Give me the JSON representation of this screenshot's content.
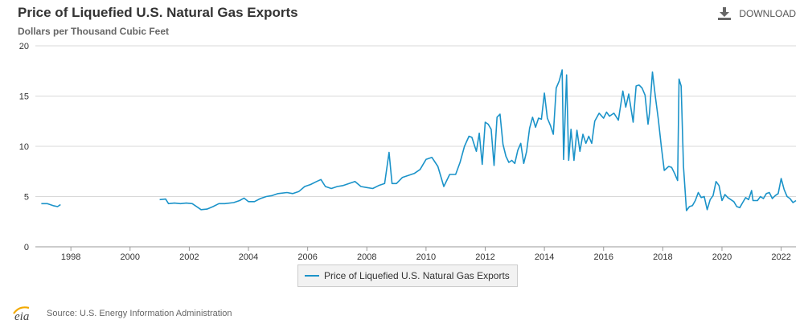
{
  "header": {
    "title": "Price of Liquefied U.S. Natural Gas Exports",
    "subtitle": "Dollars per Thousand Cubic Feet",
    "download_label": "DOWNLOAD"
  },
  "footer": {
    "logo_text": "eia",
    "source": "Source: U.S. Energy Information Administration"
  },
  "colors": {
    "series": "#1b93c9",
    "grid": "#d9d9d9",
    "axis_text": "#333333"
  },
  "chart_data": {
    "type": "line",
    "title": "Price of Liquefied U.S. Natural Gas Exports",
    "ylabel": "Dollars per Thousand Cubic Feet",
    "xlabel": "",
    "xlim": [
      1996.8,
      2022.5
    ],
    "ylim": [
      0,
      20
    ],
    "x_ticks": [
      1998,
      2000,
      2002,
      2004,
      2006,
      2008,
      2010,
      2012,
      2014,
      2016,
      2018,
      2020,
      2022
    ],
    "y_ticks": [
      0,
      5,
      10,
      15,
      20
    ],
    "grid": "horizontal",
    "legend": "bottom-center",
    "series": [
      {
        "name": "Price of Liquefied U.S. Natural Gas Exports",
        "segments": [
          [
            [
              1997.0,
              4.3
            ],
            [
              1997.2,
              4.3
            ],
            [
              1997.4,
              4.1
            ],
            [
              1997.55,
              4.0
            ],
            [
              1997.65,
              4.2
            ]
          ],
          [
            [
              2001.0,
              4.7
            ],
            [
              2001.2,
              4.75
            ],
            [
              2001.3,
              4.3
            ],
            [
              2001.5,
              4.35
            ],
            [
              2001.7,
              4.3
            ],
            [
              2001.9,
              4.35
            ],
            [
              2002.1,
              4.3
            ],
            [
              2002.3,
              3.9
            ],
            [
              2002.4,
              3.7
            ],
            [
              2002.6,
              3.75
            ],
            [
              2002.8,
              4.0
            ],
            [
              2003.0,
              4.3
            ],
            [
              2003.2,
              4.3
            ],
            [
              2003.5,
              4.4
            ],
            [
              2003.7,
              4.6
            ],
            [
              2003.85,
              4.85
            ],
            [
              2004.0,
              4.5
            ],
            [
              2004.2,
              4.5
            ],
            [
              2004.4,
              4.8
            ],
            [
              2004.6,
              5.0
            ],
            [
              2004.8,
              5.1
            ],
            [
              2005.0,
              5.3
            ],
            [
              2005.3,
              5.4
            ],
            [
              2005.5,
              5.3
            ],
            [
              2005.7,
              5.5
            ],
            [
              2005.9,
              6.0
            ],
            [
              2006.1,
              6.2
            ],
            [
              2006.3,
              6.5
            ],
            [
              2006.45,
              6.7
            ],
            [
              2006.6,
              6.0
            ],
            [
              2006.8,
              5.8
            ],
            [
              2007.0,
              6.0
            ],
            [
              2007.2,
              6.1
            ],
            [
              2007.4,
              6.3
            ],
            [
              2007.6,
              6.5
            ],
            [
              2007.8,
              6.0
            ],
            [
              2008.0,
              5.9
            ],
            [
              2008.2,
              5.8
            ],
            [
              2008.4,
              6.1
            ],
            [
              2008.6,
              6.3
            ],
            [
              2008.75,
              9.4
            ],
            [
              2008.85,
              6.3
            ],
            [
              2009.0,
              6.3
            ],
            [
              2009.2,
              6.9
            ],
            [
              2009.4,
              7.1
            ],
            [
              2009.6,
              7.3
            ],
            [
              2009.8,
              7.7
            ],
            [
              2010.0,
              8.7
            ],
            [
              2010.2,
              8.9
            ],
            [
              2010.4,
              8.0
            ],
            [
              2010.6,
              6.0
            ],
            [
              2010.8,
              7.2
            ],
            [
              2011.0,
              7.2
            ],
            [
              2011.15,
              8.4
            ],
            [
              2011.3,
              10.0
            ],
            [
              2011.45,
              11.0
            ],
            [
              2011.55,
              10.9
            ],
            [
              2011.7,
              9.5
            ],
            [
              2011.8,
              11.3
            ],
            [
              2011.9,
              8.2
            ],
            [
              2012.0,
              12.4
            ],
            [
              2012.1,
              12.2
            ],
            [
              2012.2,
              11.7
            ],
            [
              2012.3,
              8.1
            ],
            [
              2012.4,
              12.9
            ],
            [
              2012.5,
              13.2
            ],
            [
              2012.6,
              10.2
            ],
            [
              2012.7,
              9.0
            ],
            [
              2012.8,
              8.4
            ],
            [
              2012.9,
              8.6
            ],
            [
              2013.0,
              8.3
            ],
            [
              2013.1,
              9.6
            ],
            [
              2013.2,
              10.3
            ],
            [
              2013.3,
              8.3
            ],
            [
              2013.4,
              9.5
            ],
            [
              2013.5,
              11.8
            ],
            [
              2013.6,
              12.9
            ],
            [
              2013.7,
              11.9
            ],
            [
              2013.8,
              12.8
            ],
            [
              2013.9,
              12.7
            ],
            [
              2014.0,
              15.3
            ],
            [
              2014.1,
              12.8
            ],
            [
              2014.2,
              12.1
            ],
            [
              2014.3,
              11.2
            ],
            [
              2014.4,
              15.8
            ],
            [
              2014.5,
              16.5
            ],
            [
              2014.6,
              17.6
            ],
            [
              2014.65,
              8.7
            ],
            [
              2014.75,
              17.1
            ],
            [
              2014.82,
              8.6
            ],
            [
              2014.9,
              11.7
            ],
            [
              2015.0,
              8.6
            ],
            [
              2015.1,
              11.6
            ],
            [
              2015.2,
              9.5
            ],
            [
              2015.3,
              11.2
            ],
            [
              2015.4,
              10.3
            ],
            [
              2015.5,
              11.0
            ],
            [
              2015.6,
              10.3
            ],
            [
              2015.7,
              12.5
            ],
            [
              2015.85,
              13.3
            ],
            [
              2016.0,
              12.8
            ],
            [
              2016.1,
              13.4
            ],
            [
              2016.2,
              13.0
            ],
            [
              2016.35,
              13.3
            ],
            [
              2016.5,
              12.6
            ],
            [
              2016.65,
              15.5
            ],
            [
              2016.75,
              13.9
            ],
            [
              2016.85,
              15.2
            ],
            [
              2017.0,
              12.4
            ],
            [
              2017.1,
              16.0
            ],
            [
              2017.2,
              16.1
            ],
            [
              2017.3,
              15.8
            ],
            [
              2017.4,
              15.1
            ],
            [
              2017.5,
              12.2
            ],
            [
              2017.55,
              13.3
            ],
            [
              2017.65,
              17.4
            ],
            [
              2017.75,
              14.9
            ],
            [
              2017.85,
              12.7
            ],
            [
              2017.95,
              10.0
            ],
            [
              2018.05,
              7.6
            ],
            [
              2018.2,
              8.0
            ],
            [
              2018.3,
              7.9
            ],
            [
              2018.4,
              7.3
            ],
            [
              2018.5,
              6.6
            ],
            [
              2018.55,
              16.7
            ],
            [
              2018.62,
              16.0
            ],
            [
              2018.7,
              8.0
            ],
            [
              2018.8,
              3.6
            ],
            [
              2018.9,
              4.0
            ],
            [
              2019.0,
              4.1
            ],
            [
              2019.1,
              4.6
            ],
            [
              2019.2,
              5.4
            ],
            [
              2019.3,
              4.9
            ],
            [
              2019.4,
              5.0
            ],
            [
              2019.5,
              3.7
            ],
            [
              2019.6,
              4.7
            ],
            [
              2019.7,
              5.1
            ],
            [
              2019.8,
              6.5
            ],
            [
              2019.9,
              6.1
            ],
            [
              2020.0,
              4.6
            ],
            [
              2020.1,
              5.2
            ],
            [
              2020.2,
              4.9
            ],
            [
              2020.3,
              4.7
            ],
            [
              2020.4,
              4.5
            ],
            [
              2020.5,
              4.0
            ],
            [
              2020.6,
              3.9
            ],
            [
              2020.7,
              4.4
            ],
            [
              2020.8,
              4.9
            ],
            [
              2020.9,
              4.7
            ],
            [
              2021.0,
              5.6
            ],
            [
              2021.05,
              4.6
            ],
            [
              2021.2,
              4.6
            ],
            [
              2021.3,
              5.0
            ],
            [
              2021.4,
              4.8
            ],
            [
              2021.5,
              5.3
            ],
            [
              2021.6,
              5.4
            ],
            [
              2021.7,
              4.8
            ],
            [
              2021.8,
              5.1
            ],
            [
              2021.9,
              5.3
            ],
            [
              2022.0,
              6.8
            ],
            [
              2022.1,
              5.7
            ],
            [
              2022.2,
              5.0
            ],
            [
              2022.3,
              4.8
            ],
            [
              2022.4,
              4.4
            ],
            [
              2022.5,
              4.6
            ]
          ]
        ]
      }
    ]
  }
}
